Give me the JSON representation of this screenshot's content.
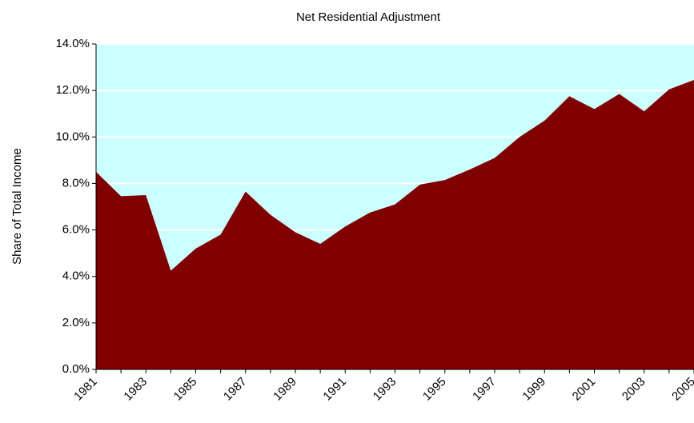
{
  "chart_data": {
    "type": "area",
    "title": "Net Residential Adjustment",
    "y_label": "Share of Total Income",
    "categories": [
      "1981",
      null,
      "1983",
      null,
      "1985",
      null,
      "1987",
      null,
      "1989",
      null,
      "1991",
      null,
      "1993",
      null,
      "1995",
      null,
      "1997",
      null,
      "1999",
      null,
      "2001",
      null,
      "2003",
      null,
      "2005"
    ],
    "series": [
      {
        "name": "Net Residential Adjustment",
        "color": "#800000",
        "values": [
          8.5,
          7.45,
          7.5,
          4.25,
          5.2,
          5.8,
          7.65,
          6.65,
          5.9,
          5.4,
          6.15,
          6.75,
          7.1,
          7.95,
          8.15,
          8.6,
          9.1,
          10.0,
          10.7,
          11.75,
          11.2,
          11.85,
          11.1,
          12.05,
          12.45
        ]
      }
    ],
    "ylim": [
      0,
      14
    ],
    "yticks": [
      {
        "value": 0,
        "label": "0.0%"
      },
      {
        "value": 2,
        "label": "2.0%"
      },
      {
        "value": 4,
        "label": "4.0%"
      },
      {
        "value": 6,
        "label": "6.0%"
      },
      {
        "value": 8,
        "label": "8.0%"
      },
      {
        "value": 10,
        "label": "10.0%"
      },
      {
        "value": 12,
        "label": "12.0%"
      },
      {
        "value": 14,
        "label": "14.0%"
      }
    ],
    "grid": true,
    "plot_background": "#ccffff"
  }
}
